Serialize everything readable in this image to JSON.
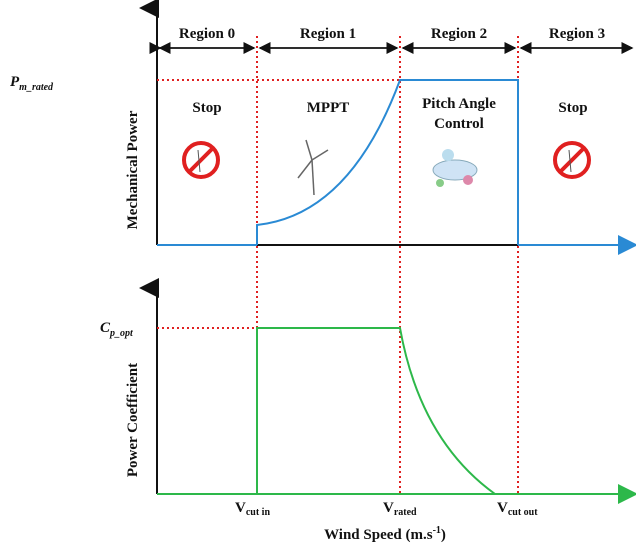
{
  "regions": [
    "Region 0",
    "Region 1",
    "Region 2",
    "Region 3"
  ],
  "region_labels": {
    "stop_left": "Stop",
    "mppt": "MPPT",
    "pitch_line1": "Pitch Angle",
    "pitch_line2": "Control",
    "stop_right": "Stop"
  },
  "top_axis": {
    "label": "Mechanical Power",
    "rated": {
      "symbol": "P",
      "subscript": "m_rated"
    }
  },
  "bottom_axis": {
    "label": "Power Coefficient",
    "opt": {
      "symbol": "C",
      "subscript": "p_opt"
    }
  },
  "x_axis": {
    "label": "Wind Speed (m.s",
    "label_sup": "-1",
    "label_end": ")",
    "speeds": [
      {
        "symbol": "V",
        "subscript": "cut in"
      },
      {
        "symbol": "V",
        "subscript": "rated"
      },
      {
        "symbol": "V",
        "subscript": "cut out"
      }
    ]
  }
}
